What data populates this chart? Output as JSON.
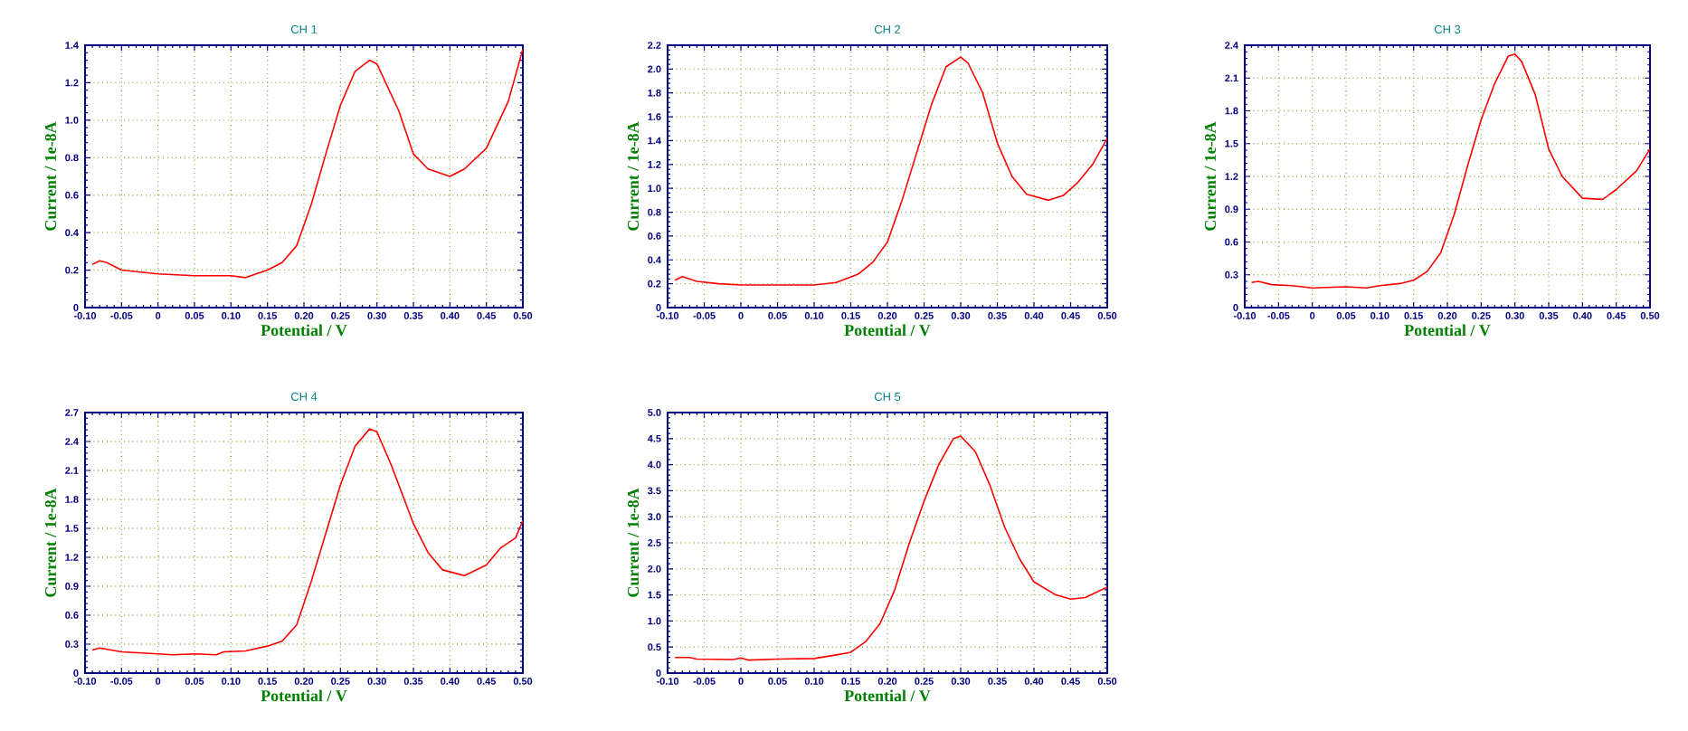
{
  "chart_data": [
    {
      "type": "line",
      "title": "CH 1",
      "xlabel": "Potential / V",
      "ylabel": "Current / 1e-8A",
      "color": "#ff0000",
      "grid": true,
      "xlim": [
        -0.1,
        0.5
      ],
      "ylim": [
        0,
        1.4
      ],
      "xticks": [
        {
          "value": -0.1,
          "label": "-0.10"
        },
        -0.05,
        0,
        0.05,
        {
          "value": 0.1,
          "label": "0.10"
        },
        0.15,
        {
          "value": 0.2,
          "label": "0.20"
        },
        0.25,
        {
          "value": 0.3,
          "label": "0.30"
        },
        0.35,
        {
          "value": 0.4,
          "label": "0.40"
        },
        0.45,
        {
          "value": 0.5,
          "label": "0.50"
        }
      ],
      "yticks": [
        0,
        0.2,
        0.4,
        0.6,
        0.8,
        {
          "value": 1.0,
          "label": "1.0"
        },
        1.2,
        1.4
      ],
      "x": [
        -0.09,
        -0.08,
        -0.07,
        -0.05,
        0,
        0.05,
        0.1,
        0.12,
        0.15,
        0.17,
        0.19,
        0.21,
        0.23,
        0.25,
        0.27,
        0.29,
        0.3,
        0.33,
        0.35,
        0.37,
        0.4,
        0.42,
        0.45,
        0.48,
        0.5
      ],
      "values": [
        0.23,
        0.25,
        0.24,
        0.2,
        0.18,
        0.17,
        0.17,
        0.16,
        0.2,
        0.24,
        0.33,
        0.55,
        0.82,
        1.08,
        1.26,
        1.32,
        1.3,
        1.05,
        0.82,
        0.74,
        0.7,
        0.74,
        0.85,
        1.1,
        1.38
      ]
    },
    {
      "type": "line",
      "title": "CH 2",
      "xlabel": "Potential / V",
      "ylabel": "Current / 1e-8A",
      "color": "#ff0000",
      "grid": true,
      "xlim": [
        -0.1,
        0.5
      ],
      "ylim": [
        0,
        2.2
      ],
      "xticks": [
        {
          "value": -0.1,
          "label": "-0.10"
        },
        -0.05,
        0,
        0.05,
        {
          "value": 0.1,
          "label": "0.10"
        },
        0.15,
        {
          "value": 0.2,
          "label": "0.20"
        },
        0.25,
        {
          "value": 0.3,
          "label": "0.30"
        },
        0.35,
        {
          "value": 0.4,
          "label": "0.40"
        },
        0.45,
        {
          "value": 0.5,
          "label": "0.50"
        }
      ],
      "yticks": [
        0,
        0.2,
        0.4,
        0.6,
        0.8,
        {
          "value": 1.0,
          "label": "1.0"
        },
        1.2,
        1.4,
        1.6,
        1.8,
        {
          "value": 2.0,
          "label": "2.0"
        },
        2.2
      ],
      "x": [
        -0.09,
        -0.08,
        -0.06,
        -0.03,
        0,
        0.05,
        0.1,
        0.13,
        0.16,
        0.18,
        0.2,
        0.22,
        0.24,
        0.26,
        0.28,
        0.3,
        0.31,
        0.33,
        0.35,
        0.37,
        0.39,
        0.42,
        0.44,
        0.46,
        0.48,
        0.5
      ],
      "values": [
        0.23,
        0.26,
        0.22,
        0.2,
        0.19,
        0.19,
        0.19,
        0.21,
        0.28,
        0.38,
        0.55,
        0.9,
        1.3,
        1.7,
        2.02,
        2.1,
        2.05,
        1.8,
        1.38,
        1.1,
        0.95,
        0.9,
        0.94,
        1.05,
        1.2,
        1.42
      ]
    },
    {
      "type": "line",
      "title": "CH 3",
      "xlabel": "Potential / V",
      "ylabel": "Current / 1e-8A",
      "color": "#ff0000",
      "grid": true,
      "xlim": [
        -0.1,
        0.5
      ],
      "ylim": [
        0,
        2.4
      ],
      "xticks": [
        {
          "value": -0.1,
          "label": "-0.10"
        },
        -0.05,
        0,
        0.05,
        {
          "value": 0.1,
          "label": "0.10"
        },
        0.15,
        {
          "value": 0.2,
          "label": "0.20"
        },
        0.25,
        {
          "value": 0.3,
          "label": "0.30"
        },
        0.35,
        {
          "value": 0.4,
          "label": "0.40"
        },
        0.45,
        {
          "value": 0.5,
          "label": "0.50"
        }
      ],
      "yticks": [
        0,
        0.3,
        0.6,
        0.9,
        1.2,
        1.5,
        1.8,
        2.1,
        2.4
      ],
      "x": [
        -0.09,
        -0.08,
        -0.06,
        -0.03,
        0,
        0.05,
        0.08,
        0.1,
        0.13,
        0.15,
        0.17,
        0.19,
        0.21,
        0.23,
        0.25,
        0.27,
        0.29,
        0.3,
        0.31,
        0.33,
        0.35,
        0.37,
        0.4,
        0.43,
        0.45,
        0.48,
        0.5
      ],
      "values": [
        0.23,
        0.24,
        0.21,
        0.2,
        0.18,
        0.19,
        0.18,
        0.2,
        0.22,
        0.25,
        0.33,
        0.5,
        0.85,
        1.3,
        1.72,
        2.05,
        2.3,
        2.32,
        2.25,
        1.95,
        1.45,
        1.2,
        1.0,
        0.99,
        1.08,
        1.25,
        1.45
      ]
    },
    {
      "type": "line",
      "title": "CH 4",
      "xlabel": "Potential / V",
      "ylabel": "Current / 1e-8A",
      "color": "#ff0000",
      "grid": true,
      "xlim": [
        -0.1,
        0.5
      ],
      "ylim": [
        0,
        2.7
      ],
      "xticks": [
        {
          "value": -0.1,
          "label": "-0.10"
        },
        -0.05,
        0,
        0.05,
        {
          "value": 0.1,
          "label": "0.10"
        },
        0.15,
        {
          "value": 0.2,
          "label": "0.20"
        },
        0.25,
        {
          "value": 0.3,
          "label": "0.30"
        },
        0.35,
        {
          "value": 0.4,
          "label": "0.40"
        },
        0.45,
        {
          "value": 0.5,
          "label": "0.50"
        }
      ],
      "yticks": [
        0,
        0.3,
        0.6,
        0.9,
        1.2,
        1.5,
        1.8,
        2.1,
        2.4,
        2.7
      ],
      "x": [
        -0.09,
        -0.08,
        -0.05,
        0,
        0.02,
        0.05,
        0.08,
        0.09,
        0.12,
        0.15,
        0.17,
        0.19,
        0.21,
        0.23,
        0.25,
        0.27,
        0.29,
        0.3,
        0.32,
        0.35,
        0.37,
        0.39,
        0.42,
        0.45,
        0.47,
        0.49,
        0.5
      ],
      "values": [
        0.24,
        0.26,
        0.22,
        0.2,
        0.19,
        0.2,
        0.19,
        0.22,
        0.23,
        0.28,
        0.33,
        0.5,
        0.95,
        1.45,
        1.95,
        2.35,
        2.53,
        2.5,
        2.15,
        1.55,
        1.25,
        1.07,
        1.01,
        1.12,
        1.3,
        1.4,
        1.58
      ]
    },
    {
      "type": "line",
      "title": "CH 5",
      "xlabel": "Potential / V",
      "ylabel": "Current / 1e-8A",
      "color": "#ff0000",
      "grid": true,
      "xlim": [
        -0.1,
        0.5
      ],
      "ylim": [
        0,
        5.0
      ],
      "xticks": [
        {
          "value": -0.1,
          "label": "-0.10"
        },
        -0.05,
        0,
        0.05,
        {
          "value": 0.1,
          "label": "0.10"
        },
        0.15,
        {
          "value": 0.2,
          "label": "0.20"
        },
        0.25,
        {
          "value": 0.3,
          "label": "0.30"
        },
        0.35,
        {
          "value": 0.4,
          "label": "0.40"
        },
        0.45,
        {
          "value": 0.5,
          "label": "0.50"
        }
      ],
      "yticks": [
        0,
        0.5,
        {
          "value": 1.0,
          "label": "1.0"
        },
        1.5,
        {
          "value": 2.0,
          "label": "2.0"
        },
        2.5,
        {
          "value": 3.0,
          "label": "3.0"
        },
        3.5,
        {
          "value": 4.0,
          "label": "4.0"
        },
        4.5,
        {
          "value": 5.0,
          "label": "5.0"
        }
      ],
      "x": [
        -0.09,
        -0.07,
        -0.06,
        -0.01,
        0,
        0.01,
        0.05,
        0.1,
        0.13,
        0.15,
        0.17,
        0.19,
        0.21,
        0.23,
        0.25,
        0.27,
        0.29,
        0.3,
        0.32,
        0.34,
        0.36,
        0.38,
        0.4,
        0.43,
        0.45,
        0.47,
        0.5
      ],
      "values": [
        0.3,
        0.3,
        0.27,
        0.26,
        0.29,
        0.25,
        0.27,
        0.28,
        0.35,
        0.4,
        0.6,
        0.95,
        1.6,
        2.5,
        3.3,
        4.0,
        4.5,
        4.55,
        4.25,
        3.6,
        2.8,
        2.2,
        1.75,
        1.5,
        1.42,
        1.45,
        1.65
      ]
    }
  ]
}
